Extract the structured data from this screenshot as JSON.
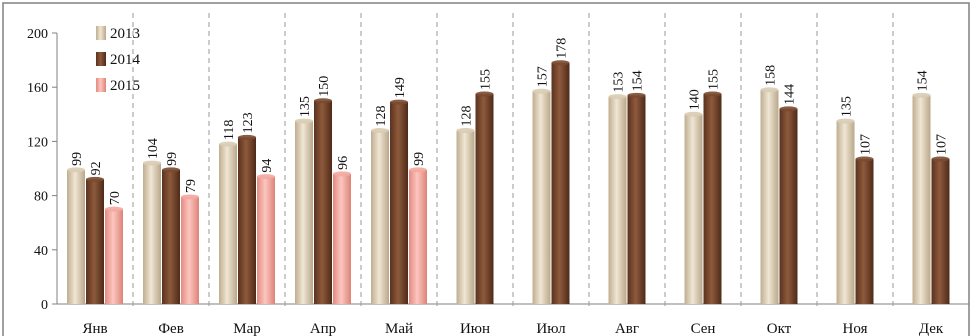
{
  "chart_data": {
    "type": "bar",
    "title": "",
    "xlabel": "",
    "ylabel": "",
    "ylim": [
      0,
      200
    ],
    "yticks": [
      0,
      40,
      80,
      120,
      160,
      200
    ],
    "grid": "vertical dashed separators between categories",
    "legend_position": "top-left",
    "categories": [
      "Янв",
      "Фев",
      "Мар",
      "Апр",
      "Май",
      "Июн",
      "Июл",
      "Авг",
      "Сен",
      "Окт",
      "Ноя",
      "Дек"
    ],
    "series": [
      {
        "name": "2013",
        "color": "#d9ccb4",
        "values": [
          99,
          104,
          118,
          135,
          128,
          128,
          157,
          153,
          140,
          158,
          135,
          154
        ]
      },
      {
        "name": "2014",
        "color": "#7a4a30",
        "values": [
          92,
          99,
          123,
          150,
          149,
          155,
          178,
          154,
          155,
          144,
          107,
          107
        ]
      },
      {
        "name": "2015",
        "color": "#f2a8a0",
        "values": [
          70,
          79,
          94,
          96,
          99,
          null,
          null,
          null,
          null,
          null,
          null,
          null
        ]
      }
    ]
  }
}
